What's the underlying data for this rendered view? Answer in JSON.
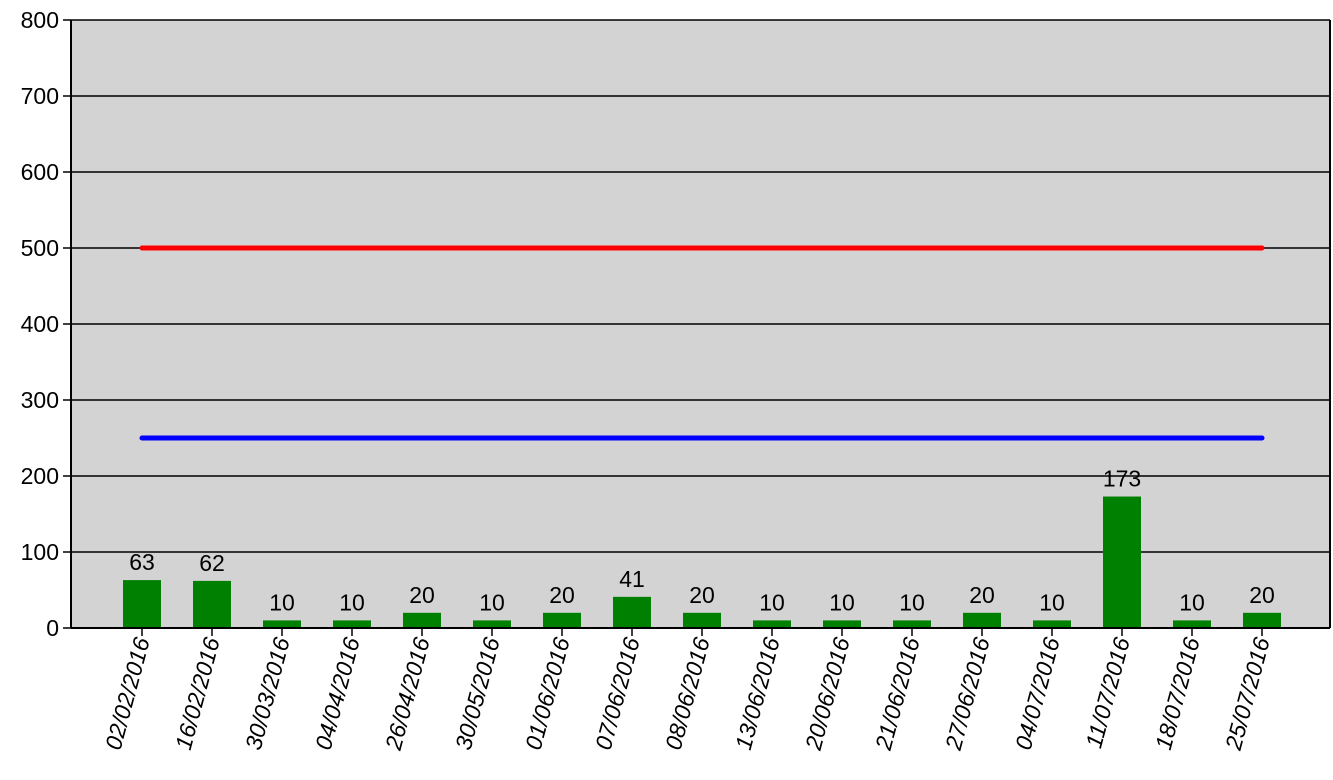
{
  "chart_data": {
    "type": "bar",
    "title": "",
    "xlabel": "",
    "ylabel": "",
    "ylim": [
      0,
      800
    ],
    "yticks": [
      0,
      100,
      200,
      300,
      400,
      500,
      600,
      700,
      800
    ],
    "grid": true,
    "legend": "none",
    "categories": [
      "02/02/2016",
      "16/02/2016",
      "30/03/2016",
      "04/04/2016",
      "26/04/2016",
      "30/05/2016",
      "01/06/2016",
      "07/06/2016",
      "08/06/2016",
      "13/06/2016",
      "20/06/2016",
      "21/06/2016",
      "27/06/2016",
      "04/07/2016",
      "11/07/2016",
      "18/07/2016",
      "25/07/2016"
    ],
    "series": [
      {
        "type": "bar",
        "values": [
          63,
          62,
          10,
          10,
          20,
          10,
          20,
          41,
          20,
          10,
          10,
          10,
          20,
          10,
          173,
          10,
          20
        ],
        "data_labels": [
          "63",
          "62",
          "10",
          "10",
          "20",
          "10",
          "20",
          "41",
          "20",
          "10",
          "10",
          "10",
          "20",
          "10",
          "173",
          "10",
          "20"
        ],
        "color": "#008000"
      },
      {
        "type": "line",
        "values": [
          500,
          500,
          500,
          500,
          500,
          500,
          500,
          500,
          500,
          500,
          500,
          500,
          500,
          500,
          500,
          500,
          500
        ],
        "color": "#ff0000"
      },
      {
        "type": "line",
        "values": [
          250,
          250,
          250,
          250,
          250,
          250,
          250,
          250,
          250,
          250,
          250,
          250,
          250,
          250,
          250,
          250,
          250
        ],
        "color": "#0000ff"
      }
    ],
    "colors": {
      "plot_background": "#d3d3d3",
      "gridline": "#000000",
      "axis": "#000000"
    }
  }
}
